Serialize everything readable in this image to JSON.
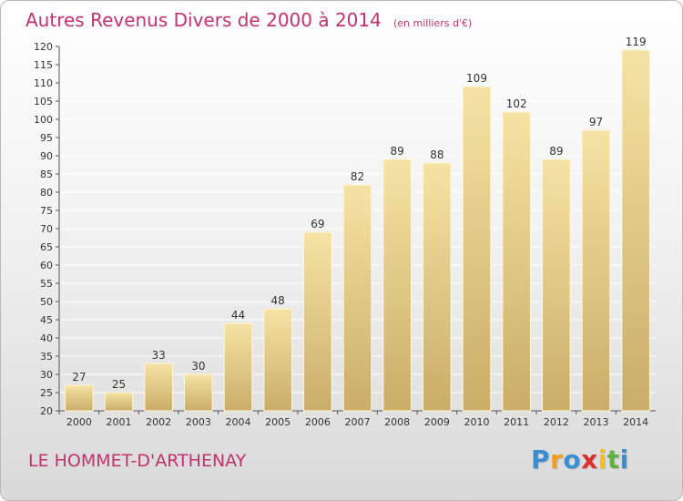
{
  "title": "Autres Revenus Divers de 2000 à 2014",
  "unit": "(en milliers d'€)",
  "commune": "LE HOMMET-D'ARTHENAY",
  "logo": {
    "letters": [
      "P",
      "r",
      "o",
      "x",
      "i",
      "t",
      "i"
    ],
    "colors": [
      "#3b8fd1",
      "#f29f1e",
      "#3b8fd1",
      "#d8312f",
      "#f2c218",
      "#5fb041",
      "#3b8fd1"
    ]
  },
  "colors": {
    "bar_top": "#f6e3a4",
    "bar_bottom": "#c9ad68",
    "bar_edge": "#fff6d6",
    "title": "#c0336b",
    "grid": "#ffffff"
  },
  "chart_data": {
    "type": "bar",
    "title": "Autres Revenus Divers de 2000 à 2014",
    "subtitle": "(en milliers d'€)",
    "categories": [
      "2000",
      "2001",
      "2002",
      "2003",
      "2004",
      "2005",
      "2006",
      "2007",
      "2008",
      "2009",
      "2010",
      "2011",
      "2012",
      "2013",
      "2014"
    ],
    "values": [
      27,
      25,
      33,
      30,
      44,
      48,
      69,
      82,
      89,
      88,
      109,
      102,
      89,
      97,
      119
    ],
    "ylim": [
      20,
      120
    ],
    "yticks": [
      20,
      25,
      30,
      35,
      40,
      45,
      50,
      55,
      60,
      65,
      70,
      75,
      80,
      85,
      90,
      95,
      100,
      105,
      110,
      115,
      120
    ],
    "grid": true,
    "xlabel": "",
    "ylabel": ""
  }
}
